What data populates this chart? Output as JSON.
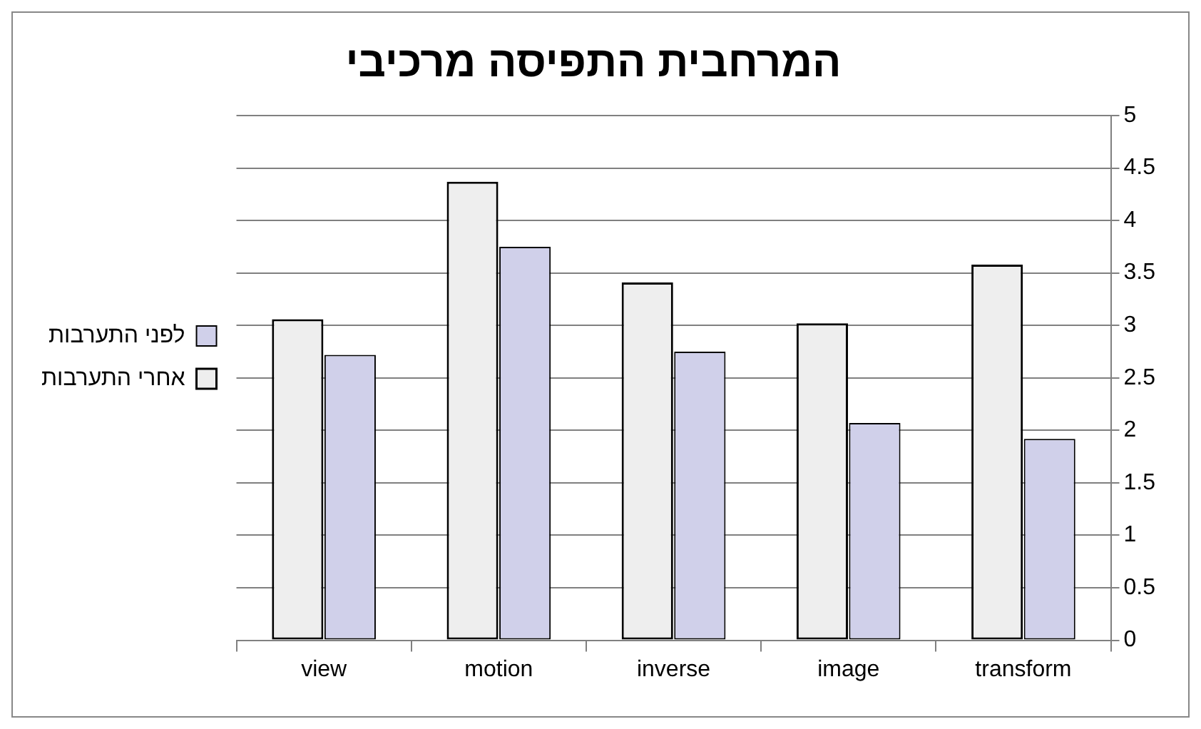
{
  "chart_data": {
    "type": "bar",
    "title": "המרחבית התפיסה מרכיבי",
    "categories": [
      "view",
      "motion",
      "inverse",
      "image",
      "transform"
    ],
    "series": [
      {
        "name": "אחרי התערבות",
        "color": "#eeeeee",
        "values": [
          3.06,
          4.37,
          3.41,
          3.02,
          3.58
        ]
      },
      {
        "name": "לפני התערבות",
        "color": "#d0d0ea",
        "values": [
          2.72,
          3.75,
          2.75,
          2.07,
          1.92
        ]
      }
    ],
    "ylim": [
      0,
      5
    ],
    "yticks": [
      0,
      0.5,
      1,
      1.5,
      2,
      2.5,
      3,
      3.5,
      4,
      4.5,
      5
    ],
    "grid": "y",
    "legend": "left"
  }
}
